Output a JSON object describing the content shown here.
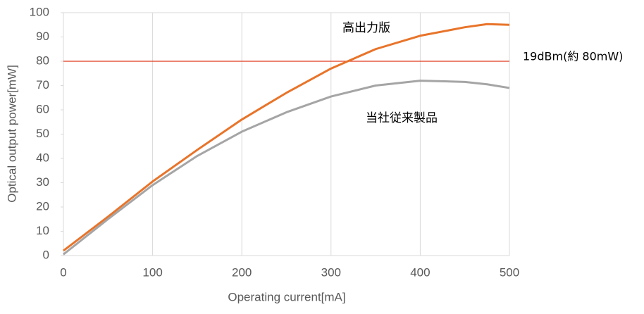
{
  "chart_data": {
    "type": "line",
    "x_label": "Operating current[mA]",
    "y_label": "Optical output power[mW]",
    "x": [
      0,
      50,
      100,
      150,
      200,
      250,
      300,
      350,
      400,
      450,
      475,
      500
    ],
    "series": [
      {
        "name": "高出力版",
        "color": "#e8742a",
        "values": [
          2,
          16,
          30.5,
          43.5,
          56,
          67,
          77,
          85,
          90.5,
          94,
          95.3,
          95
        ]
      },
      {
        "name": "当社従来製品",
        "color": "#a5a5a5",
        "values": [
          0.5,
          15,
          29,
          41,
          51,
          59,
          65.5,
          70,
          72,
          71.5,
          70.5,
          69
        ]
      }
    ],
    "reference_line": {
      "value": 80,
      "label": "19dBm(約 80mW)",
      "color": "#e03a1e"
    },
    "xlim": [
      0,
      500
    ],
    "xticks": [
      0,
      100,
      200,
      300,
      400,
      500
    ],
    "ylim": [
      0,
      100
    ],
    "yticks": [
      0,
      10,
      20,
      30,
      40,
      50,
      60,
      70,
      80,
      90,
      100
    ],
    "grid": "x"
  }
}
